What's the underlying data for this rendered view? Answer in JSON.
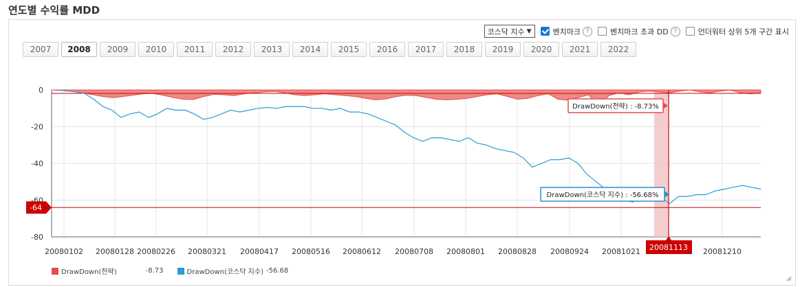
{
  "title": "연도별 수익률 MDD",
  "controls": {
    "index_select": "코스닥 지수",
    "benchmark_label": "벤치마크",
    "benchmark_checked": true,
    "excess_dd_label": "벤치마크 초과 DD",
    "excess_dd_checked": false,
    "underwater_label": "언더워터 상위 5개 구간 표시",
    "underwater_checked": false
  },
  "years": [
    "2007",
    "2008",
    "2009",
    "2010",
    "2011",
    "2012",
    "2013",
    "2014",
    "2015",
    "2016",
    "2017",
    "2018",
    "2019",
    "2020",
    "2021",
    "2022"
  ],
  "active_year": "2008",
  "colors": {
    "strategy": "#e84a4a",
    "strategy_fill": "#f08888",
    "index": "#2b9ad6",
    "marker": "#cc0000"
  },
  "chart_data": {
    "type": "area",
    "x_ticks": [
      "20080102",
      "20080128",
      "20080226",
      "20080321",
      "20080417",
      "20080516",
      "20080612",
      "20080708",
      "20080801",
      "20080828",
      "20080924",
      "20081021",
      "20081210"
    ],
    "ylim": [
      -80,
      0
    ],
    "y_ticks": [
      "0",
      "-20",
      "-40",
      "-60",
      "-80"
    ],
    "grid": true,
    "series": [
      {
        "name": "DrawDown(전략)",
        "last_value": "-8.73",
        "values": [
          0,
          -0.3,
          -0.8,
          -1.5,
          -2.5,
          -3.5,
          -4.2,
          -3.6,
          -2.9,
          -2.1,
          -1.9,
          -2.9,
          -4.1,
          -5.1,
          -5.2,
          -3.6,
          -2.4,
          -2.6,
          -3.1,
          -2.1,
          -1.6,
          -1.1,
          -0.8,
          -1.6,
          -2.6,
          -3.1,
          -2.6,
          -2.1,
          -2.6,
          -3.1,
          -3.6,
          -4.6,
          -5.4,
          -4.9,
          -3.6,
          -2.9,
          -3.1,
          -4.1,
          -5.1,
          -5.4,
          -5.1,
          -4.6,
          -3.6,
          -2.6,
          -2.1,
          -3.6,
          -5.1,
          -4.6,
          -3.1,
          -2.1,
          -5.1,
          -5.6,
          -4.1,
          -2.6,
          -8.73,
          -3.1,
          -1.6,
          -2.6,
          -1.1,
          -0.6,
          -1.1,
          -1.6,
          -0.6,
          0,
          -1.1,
          -1.6,
          -0.6,
          -0.1,
          -1.6,
          -2.1,
          -1.6
        ]
      },
      {
        "name": "DrawDown(코스닥 지수)",
        "last_value": "-56.68",
        "values": [
          0,
          -0.5,
          -1,
          -2,
          -5,
          -9,
          -11,
          -15,
          -13,
          -12,
          -15,
          -13,
          -10,
          -11,
          -11,
          -13,
          -16,
          -15,
          -13,
          -11,
          -12,
          -11,
          -10,
          -9.5,
          -10,
          -9,
          -9,
          -9,
          -10,
          -10,
          -11,
          -10,
          -12,
          -12,
          -13,
          -15,
          -17,
          -19,
          -23,
          -26,
          -28,
          -26,
          -26,
          -27,
          -28,
          -26,
          -29,
          -30,
          -32,
          -33,
          -34,
          -37,
          -42,
          -40,
          -38,
          -38,
          -37,
          -40,
          -46,
          -50,
          -54,
          -58,
          -60,
          -61,
          -58,
          -55,
          -58,
          -62,
          -58,
          -58,
          -57,
          -57,
          -55,
          -54,
          -53,
          -52,
          -53,
          -54
        ]
      }
    ],
    "baseline_marker": "-64",
    "crosshair_date": "20081113",
    "tooltips": {
      "strategy": "DrawDown(전략) : -8.73%",
      "index": "DrawDown(코스닥 지수) : -56.68%"
    }
  },
  "legend": [
    {
      "label": "DrawDown(전략)",
      "value": "-8.73"
    },
    {
      "label": "DrawDown(코스닥 지수)",
      "value": "-56.68"
    }
  ]
}
